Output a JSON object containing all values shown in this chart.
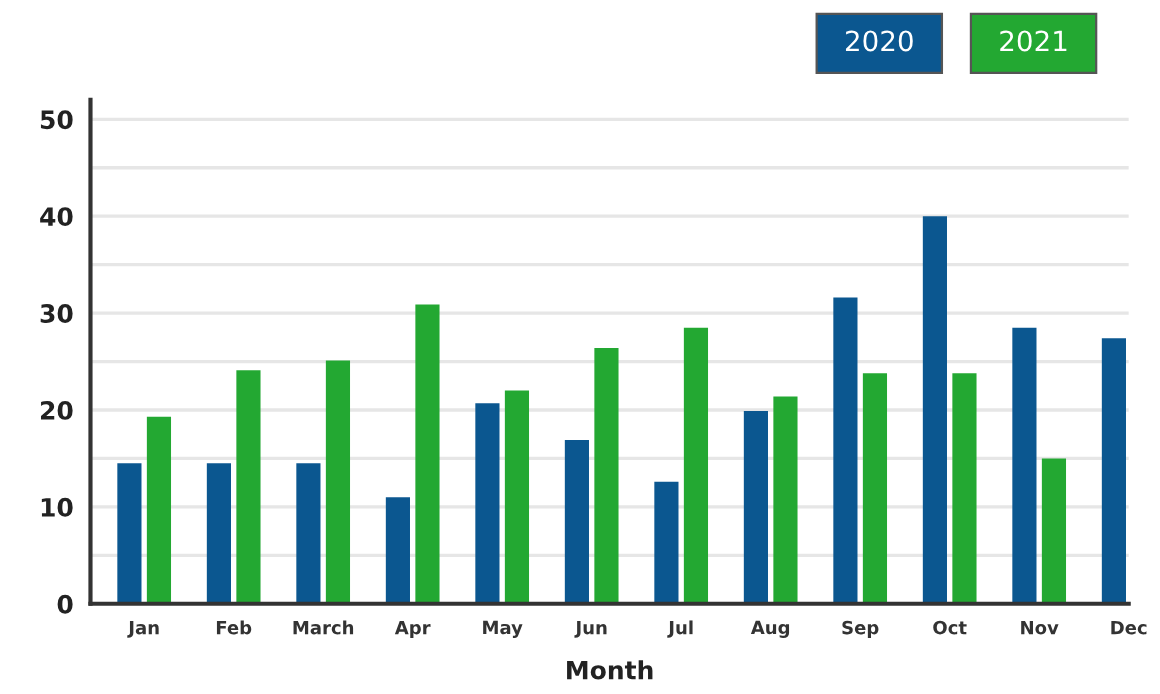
{
  "chart_data": {
    "type": "bar",
    "xlabel": "Month",
    "categories": [
      "Jan",
      "Feb",
      "March",
      "Apr",
      "May",
      "Jun",
      "Jul",
      "Aug",
      "Sep",
      "Oct",
      "Nov",
      "Dec"
    ],
    "series": [
      {
        "name": "2020",
        "color": "#0b5790",
        "values": [
          14.5,
          14.5,
          14.5,
          11.0,
          20.7,
          16.9,
          12.6,
          19.9,
          31.6,
          40.0,
          28.5,
          27.4
        ]
      },
      {
        "name": "2021",
        "color": "#23a832",
        "values": [
          19.3,
          24.1,
          25.1,
          30.9,
          22.0,
          26.4,
          28.5,
          21.4,
          23.8,
          23.8,
          15.0,
          null
        ]
      }
    ],
    "ylim": [
      0,
      52
    ],
    "yticks": [
      0,
      {
        "value": 5,
        "label": null
      },
      10,
      {
        "value": 15,
        "label": null
      },
      20,
      {
        "value": 25,
        "label": null
      },
      30,
      {
        "value": 35,
        "label": null
      },
      40,
      {
        "value": 45,
        "label": null
      },
      50
    ],
    "grid": "y",
    "legend": "top right"
  }
}
